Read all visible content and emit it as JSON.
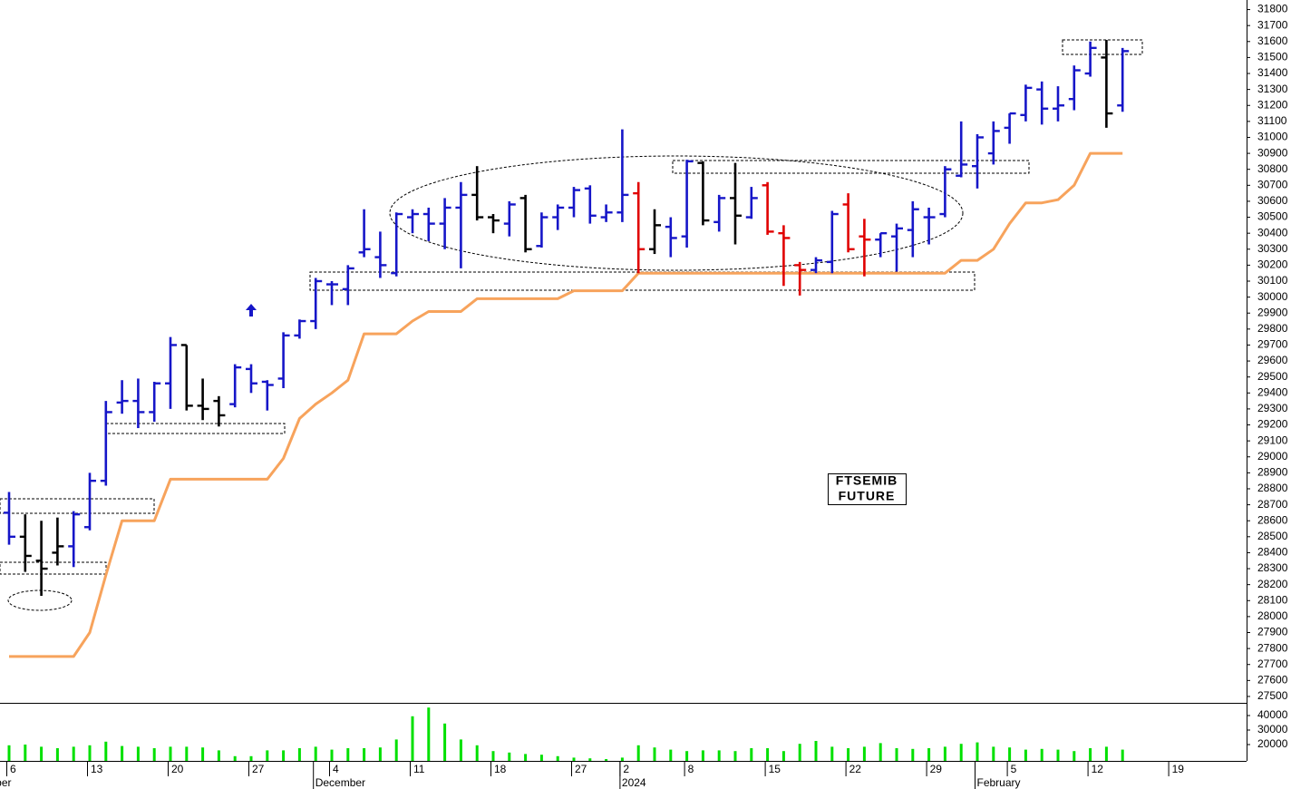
{
  "chart_data": [
    {
      "type": "ohlc",
      "annotation": [
        "FTSEMIB",
        "FUTURE"
      ],
      "categories": [
        "6",
        null,
        null,
        null,
        null,
        "13",
        null,
        null,
        null,
        null,
        "20",
        null,
        null,
        null,
        null,
        "27",
        null,
        null,
        null,
        null,
        "4",
        null,
        null,
        null,
        null,
        "11",
        null,
        null,
        null,
        null,
        "18",
        null,
        null,
        null,
        null,
        "27",
        null,
        null,
        "2",
        null,
        null,
        null,
        "8",
        null,
        null,
        null,
        null,
        "15",
        null,
        null,
        null,
        null,
        "22",
        null,
        null,
        null,
        null,
        "29",
        null,
        null,
        null,
        null,
        "5",
        null,
        null,
        null,
        null,
        "12",
        null,
        null,
        null,
        null,
        "19",
        null,
        null,
        null,
        null
      ],
      "x_groups": [
        {
          "label": "ber",
          "start": 0
        },
        {
          "label": "December",
          "start": 19
        },
        {
          "label": "2024",
          "start": 38
        },
        {
          "label": "February",
          "start": 60
        }
      ],
      "open": [
        28650,
        28500,
        28350,
        28400,
        28440,
        28560,
        28850,
        29340,
        29350,
        29280,
        29460,
        29700,
        29320,
        29350,
        29330,
        29550,
        29470,
        29490,
        29760,
        29850,
        30080,
        30050,
        30280,
        30250,
        30150,
        30500,
        30520,
        30460,
        30560,
        30640,
        30500,
        30460,
        30620,
        30320,
        30500,
        30560,
        30680,
        30500,
        30530,
        30650,
        30300,
        30440,
        30380,
        30840,
        30470,
        30620,
        30500,
        30700,
        30400,
        30200,
        30170,
        30220,
        30580,
        30380,
        30360,
        30380,
        30420,
        30500,
        30520,
        30760,
        30820,
        30900,
        31060,
        31140,
        31300,
        31180,
        31240,
        31400,
        31500,
        31200,
        null,
        null,
        null,
        null,
        null,
        null,
        null
      ],
      "high": [
        28780,
        28640,
        28600,
        28620,
        28660,
        28900,
        29350,
        29480,
        29490,
        29470,
        29750,
        29700,
        29490,
        29380,
        29580,
        29580,
        29480,
        29780,
        29860,
        30120,
        30100,
        30200,
        30550,
        30410,
        30530,
        30550,
        30560,
        30620,
        30720,
        30820,
        30520,
        30600,
        30640,
        30530,
        30580,
        30690,
        30700,
        30580,
        31050,
        30720,
        30550,
        30500,
        30860,
        30850,
        30640,
        30840,
        30690,
        30720,
        30450,
        30220,
        30250,
        30540,
        30650,
        30490,
        30400,
        30460,
        30600,
        30560,
        30820,
        31100,
        31020,
        31100,
        31150,
        31330,
        31350,
        31320,
        31450,
        31600,
        31610,
        31560,
        null,
        null,
        null,
        null,
        null,
        null,
        null
      ],
      "low": [
        28450,
        28280,
        28130,
        28320,
        28310,
        28540,
        28820,
        29270,
        29180,
        29220,
        29300,
        29290,
        29230,
        29190,
        29310,
        29400,
        29290,
        29430,
        29740,
        29800,
        29950,
        29950,
        30250,
        30120,
        30130,
        30400,
        30350,
        30300,
        30180,
        30480,
        30400,
        30380,
        30280,
        30310,
        30420,
        30500,
        30460,
        30470,
        30470,
        30150,
        30270,
        30250,
        30310,
        30450,
        30410,
        30330,
        30490,
        30390,
        30070,
        30010,
        30150,
        30150,
        30280,
        30130,
        30250,
        30160,
        30250,
        30330,
        30500,
        30750,
        30680,
        30830,
        30960,
        31100,
        31080,
        31100,
        31170,
        31380,
        31060,
        31160,
        null,
        null,
        null,
        null,
        null,
        null,
        null
      ],
      "close": [
        28500,
        28380,
        28300,
        28440,
        28640,
        28850,
        29280,
        29350,
        29280,
        29460,
        29700,
        29320,
        29300,
        29260,
        29560,
        29460,
        29450,
        29760,
        29850,
        30100,
        30080,
        30180,
        30300,
        30200,
        30520,
        30520,
        30460,
        30560,
        30640,
        30500,
        30480,
        30580,
        30300,
        30500,
        30560,
        30670,
        30510,
        30530,
        30640,
        30300,
        30450,
        30370,
        30850,
        30480,
        30620,
        30510,
        30620,
        30410,
        30370,
        30170,
        30230,
        30520,
        30300,
        30360,
        30400,
        30430,
        30550,
        30500,
        30800,
        30830,
        31000,
        31040,
        31150,
        31310,
        31180,
        31200,
        31420,
        31560,
        31150,
        31540,
        null,
        null,
        null,
        null,
        null,
        null,
        null
      ],
      "bar_colors": [
        "#1616c8",
        "#000000",
        "#000000",
        "#000000",
        "#1616c8",
        "#1616c8",
        "#1616c8",
        "#1616c8",
        "#1616c8",
        "#1616c8",
        "#1616c8",
        "#000000",
        "#000000",
        "#000000",
        "#1616c8",
        "#1616c8",
        "#1616c8",
        "#1616c8",
        "#1616c8",
        "#1616c8",
        "#1616c8",
        "#1616c8",
        "#1616c8",
        "#1616c8",
        "#1616c8",
        "#1616c8",
        "#1616c8",
        "#1616c8",
        "#1616c8",
        "#000000",
        "#000000",
        "#1616c8",
        "#000000",
        "#1616c8",
        "#1616c8",
        "#1616c8",
        "#1616c8",
        "#1616c8",
        "#1616c8",
        "#e00000",
        "#000000",
        "#1616c8",
        "#1616c8",
        "#000000",
        "#1616c8",
        "#000000",
        "#1616c8",
        "#e00000",
        "#e00000",
        "#e00000",
        "#1616c8",
        "#1616c8",
        "#e00000",
        "#e00000",
        "#1616c8",
        "#1616c8",
        "#1616c8",
        "#1616c8",
        "#1616c8",
        "#1616c8",
        "#1616c8",
        "#1616c8",
        "#1616c8",
        "#1616c8",
        "#1616c8",
        "#1616c8",
        "#1616c8",
        "#1616c8",
        "#000000",
        "#1616c8",
        null,
        null,
        null,
        null,
        null,
        null,
        null
      ],
      "stop_line": {
        "color": "#f7a35c",
        "values": [
          27750,
          27750,
          27750,
          27750,
          27750,
          27900,
          28260,
          28600,
          28600,
          28600,
          28860,
          28860,
          28860,
          28860,
          28860,
          28860,
          28860,
          28990,
          29240,
          29330,
          29400,
          29480,
          29770,
          29770,
          29770,
          29850,
          29910,
          29910,
          29910,
          29990,
          29990,
          29990,
          29990,
          29990,
          29990,
          30040,
          30040,
          30040,
          30040,
          30150,
          30150,
          30150,
          30150,
          30150,
          30150,
          30150,
          30150,
          30150,
          30150,
          30150,
          30150,
          30150,
          30150,
          30150,
          30150,
          30150,
          30150,
          30150,
          30150,
          30230,
          30230,
          30300,
          30460,
          30590,
          30590,
          30610,
          30700,
          30900,
          30900,
          30900,
          null,
          null,
          null,
          null,
          null,
          null,
          null
        ]
      },
      "ylim": [
        27460,
        31860
      ],
      "yticks": [
        27500,
        27600,
        27700,
        27800,
        27900,
        28000,
        28100,
        28200,
        28300,
        28400,
        28500,
        28600,
        28700,
        28800,
        28900,
        29000,
        29100,
        29200,
        29300,
        29400,
        29500,
        29600,
        29700,
        29800,
        29900,
        30000,
        30100,
        30200,
        30300,
        30400,
        30500,
        30600,
        30700,
        30800,
        30900,
        31000,
        31100,
        31200,
        31300,
        31400,
        31500,
        31600,
        31700,
        31800
      ]
    },
    {
      "type": "bar",
      "color": "#00e000",
      "values": [
        19500,
        20000,
        18500,
        17500,
        18500,
        19500,
        22000,
        19000,
        18500,
        17500,
        18500,
        18500,
        18000,
        16000,
        12000,
        12000,
        16000,
        16000,
        17500,
        18500,
        16500,
        17500,
        17500,
        18000,
        23500,
        39500,
        45500,
        34500,
        23500,
        19500,
        15500,
        14500,
        13500,
        13000,
        12000,
        11000,
        10500,
        10000,
        11000,
        19500,
        18000,
        16500,
        15500,
        16000,
        16000,
        15500,
        17500,
        17500,
        15500,
        20500,
        22500,
        18500,
        17500,
        18500,
        21000,
        17500,
        17000,
        17500,
        18500,
        20500,
        21500,
        18500,
        18000,
        16500,
        17000,
        16500,
        15500,
        17500,
        18500,
        16500,
        null,
        null,
        null,
        null,
        null,
        null,
        null
      ],
      "ylim": [
        8750,
        48125
      ],
      "yticks": [
        20000,
        30000,
        40000
      ]
    }
  ]
}
